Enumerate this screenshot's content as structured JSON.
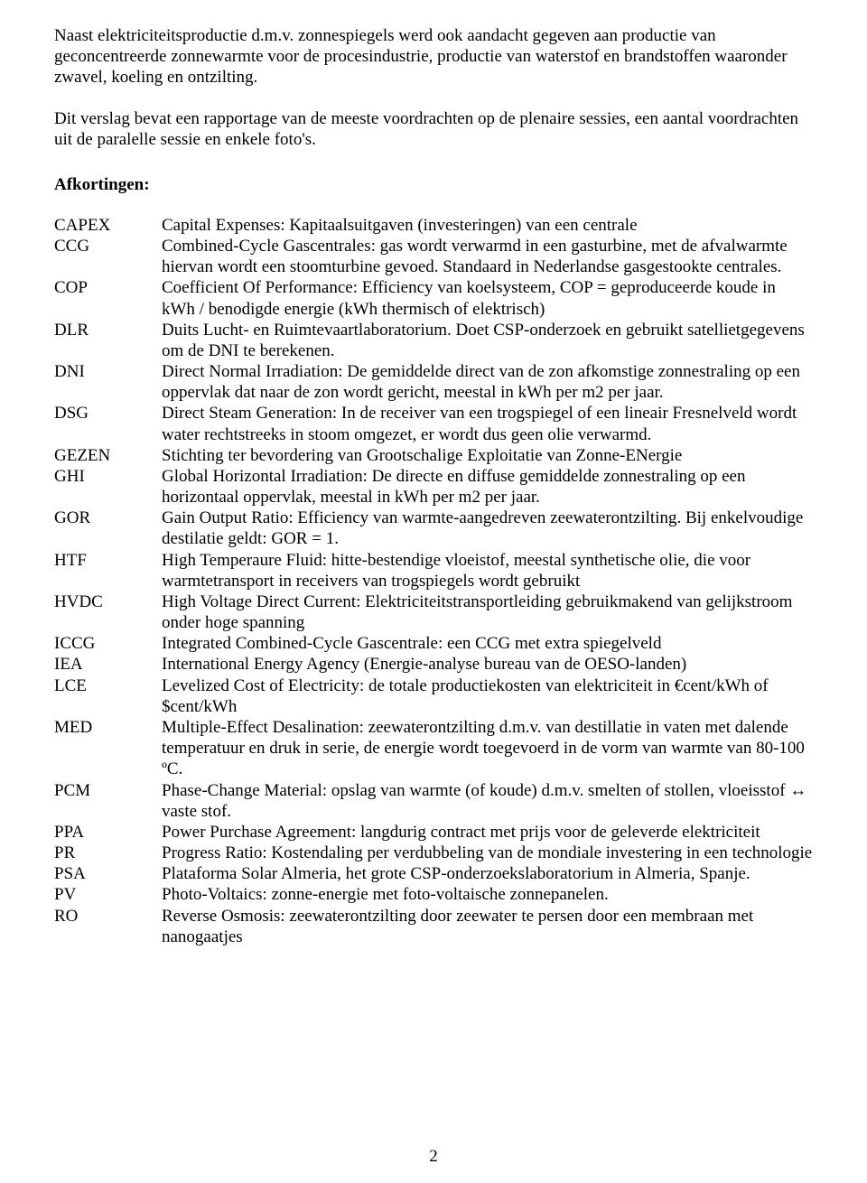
{
  "paragraphs": {
    "p1": "Naast elektriciteitsproductie d.m.v. zonnespiegels werd ook aandacht gegeven aan productie van geconcentreerde zonnewarmte voor de procesindustrie, productie van waterstof en brandstoffen waaronder zwavel, koeling en  ontzilting.",
    "p2": "Dit verslag bevat een rapportage van de meeste voordrachten op de plenaire sessies, een aantal voordrachten uit de paralelle sessie en enkele foto's."
  },
  "section_heading": "Afkortingen:",
  "definitions": [
    {
      "term": "CAPEX",
      "desc": "Capital Expenses: Kapitaalsuitgaven (investeringen) van een centrale"
    },
    {
      "term": "CCG",
      "desc": "Combined-Cycle Gascentrales: gas wordt verwarmd in een gasturbine, met de afvalwarmte hiervan wordt een stoomturbine gevoed. Standaard in Nederlandse gasgestookte centrales."
    },
    {
      "term": "COP",
      "desc": "Coefficient Of Performance: Efficiency van koelsysteem, COP = geproduceerde koude in kWh / benodigde energie (kWh thermisch of elektrisch)"
    },
    {
      "term": "DLR",
      "desc": "Duits Lucht- en Ruimtevaartlaboratorium. Doet CSP-onderzoek en gebruikt satellietgegevens om de DNI te berekenen."
    },
    {
      "term": "DNI",
      "desc": "Direct Normal Irradiation: De gemiddelde direct van de zon afkomstige zonnestraling op een oppervlak dat naar de zon wordt gericht, meestal in kWh per m2 per jaar."
    },
    {
      "term": "DSG",
      "desc": "Direct Steam Generation: In de receiver van een trogspiegel of een lineair Fresnelveld wordt water rechtstreeks in stoom omgezet, er wordt dus geen olie verwarmd."
    },
    {
      "term": "GEZEN",
      "desc": "Stichting ter bevordering van Grootschalige Exploitatie van Zonne-ENergie"
    },
    {
      "term": "GHI",
      "desc": "Global Horizontal Irradiation: De directe en diffuse gemiddelde zonnestraling op een horizontaal oppervlak, meestal in kWh per m2 per jaar."
    },
    {
      "term": "GOR",
      "desc": "Gain Output Ratio: Efficiency van warmte-aangedreven zeewaterontzilting. Bij enkelvoudige destilatie geldt: GOR = 1."
    },
    {
      "term": "HTF",
      "desc": "High Temperaure Fluid: hitte-bestendige vloeistof, meestal synthetische olie, die voor warmtetransport in receivers van trogspiegels wordt gebruikt"
    },
    {
      "term": "HVDC",
      "desc": "High Voltage Direct Current: Elektriciteitstransportleiding gebruikmakend van gelijkstroom onder hoge spanning"
    },
    {
      "term": "ICCG",
      "desc": "Integrated Combined-Cycle Gascentrale: een CCG met extra spiegelveld"
    },
    {
      "term": "IEA",
      "desc": "International Energy Agency (Energie-analyse bureau van de OESO-landen)"
    },
    {
      "term": "LCE",
      "desc": "Levelized Cost of Electricity: de totale productiekosten van elektriciteit in €cent/kWh of $cent/kWh"
    },
    {
      "term": "MED",
      "desc": "Multiple-Effect Desalination: zeewaterontzilting d.m.v. van destillatie in vaten met dalende temperatuur en druk in serie, de energie wordt toegevoerd in de vorm van warmte van 80-100 ºC."
    },
    {
      "term": "PCM",
      "desc": "Phase-Change Material: opslag van warmte (of koude) d.m.v. smelten of stollen, vloeisstof ↔ vaste stof."
    },
    {
      "term": "PPA",
      "desc": "Power Purchase Agreement: langdurig contract met prijs voor de geleverde elektriciteit"
    },
    {
      "term": "PR",
      "desc": "Progress Ratio: Kostendaling per verdubbeling van de mondiale investering in een technologie"
    },
    {
      "term": "PSA",
      "desc": "Plataforma Solar Almeria, het grote CSP-onderzoekslaboratorium in Almeria, Spanje."
    },
    {
      "term": "PV",
      "desc": "Photo-Voltaics: zonne-energie met foto-voltaische zonnepanelen."
    },
    {
      "term": "RO",
      "desc": "Reverse Osmosis: zeewaterontzilting door zeewater te persen door een membraan met nanogaatjes"
    }
  ],
  "page_number": "2"
}
